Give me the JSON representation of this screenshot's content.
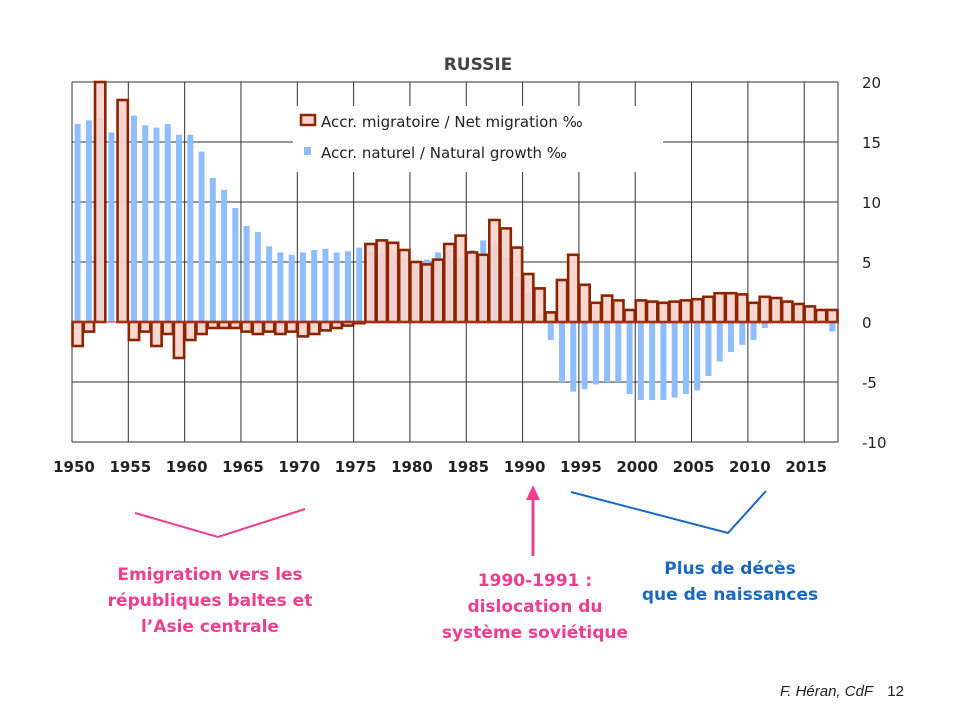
{
  "chart_data": {
    "type": "bar",
    "title": "RUSSIE",
    "x": [
      1950,
      1951,
      1952,
      1953,
      1954,
      1955,
      1956,
      1957,
      1958,
      1959,
      1960,
      1961,
      1962,
      1963,
      1964,
      1965,
      1966,
      1967,
      1968,
      1969,
      1970,
      1971,
      1972,
      1973,
      1974,
      1975,
      1976,
      1977,
      1978,
      1979,
      1980,
      1981,
      1982,
      1983,
      1984,
      1985,
      1986,
      1987,
      1988,
      1989,
      1990,
      1991,
      1992,
      1993,
      1994,
      1995,
      1996,
      1997,
      1998,
      1999,
      2000,
      2001,
      2002,
      2003,
      2004,
      2005,
      2006,
      2007,
      2008,
      2009,
      2010,
      2011,
      2012,
      2013,
      2014,
      2015,
      2016,
      2017
    ],
    "x_ticks": [
      1950,
      1955,
      1960,
      1965,
      1970,
      1975,
      1980,
      1985,
      1990,
      1995,
      2000,
      2005,
      2010,
      2015
    ],
    "ylim": [
      -10,
      20
    ],
    "y_ticks": [
      -10,
      -5,
      0,
      5,
      10,
      15,
      20
    ],
    "grid": true,
    "legend": "top-left",
    "series": [
      {
        "name": "Accr. migratoire / Net migration ‰",
        "color": "#8b2500",
        "fill": "#fbd3cc",
        "values": [
          -2.0,
          -0.8,
          20,
          0,
          18.5,
          -1.5,
          -0.8,
          -2.0,
          -1.0,
          -3.0,
          -1.5,
          -1.0,
          -0.5,
          -0.5,
          -0.5,
          -0.8,
          -1.0,
          -0.8,
          -1.0,
          -0.8,
          -1.2,
          -1.0,
          -0.7,
          -0.5,
          -0.3,
          -0.1,
          6.5,
          6.8,
          6.6,
          6.0,
          5.0,
          4.8,
          5.2,
          6.5,
          7.2,
          5.8,
          5.6,
          8.5,
          7.8,
          6.2,
          4.0,
          2.8,
          0.8,
          3.5,
          5.6,
          3.1,
          1.6,
          2.2,
          1.8,
          1.0,
          1.8,
          1.7,
          1.6,
          1.7,
          1.8,
          1.9,
          2.1,
          2.4,
          2.4,
          2.3,
          1.6,
          2.1,
          2.0,
          1.7,
          1.5,
          1.3,
          1.0,
          1.0
        ]
      },
      {
        "name": "Accr. naturel / Natural growth ‰",
        "color": "#8ebeff",
        "values": [
          16.5,
          16.8,
          17.0,
          15.8,
          17.5,
          17.2,
          16.4,
          16.2,
          16.5,
          15.6,
          15.6,
          14.2,
          12.0,
          11.0,
          9.5,
          8.0,
          7.5,
          6.3,
          5.8,
          5.6,
          5.8,
          6.0,
          6.1,
          5.8,
          5.9,
          6.2,
          5.9,
          5.8,
          5.7,
          5.3,
          4.9,
          5.2,
          5.8,
          6.1,
          5.4,
          6.0,
          6.8,
          6.5,
          5.4,
          3.8,
          2.4,
          0.7,
          -1.5,
          -5.0,
          -5.8,
          -5.6,
          -5.2,
          -5.0,
          -5.0,
          -6.0,
          -6.5,
          -6.5,
          -6.5,
          -6.3,
          -6.0,
          -5.7,
          -4.5,
          -3.3,
          -2.5,
          -1.9,
          -1.5,
          -0.5,
          0.0,
          0.0,
          0.0,
          0.0,
          0.0,
          -0.8
        ]
      }
    ]
  },
  "annotations": {
    "emigration": [
      "Emigration vers les",
      "républiques baltes et",
      "l’Asie centrale"
    ],
    "dislocation": [
      "1990-1991 :",
      "dislocation du",
      "système soviétique"
    ],
    "deces": [
      "Plus de décès",
      "que de naissances"
    ]
  },
  "colors": {
    "pink": "#ee3f8f",
    "blue": "#1a68c4"
  },
  "credit": {
    "author": "F. Héran, CdF",
    "page": "12"
  }
}
